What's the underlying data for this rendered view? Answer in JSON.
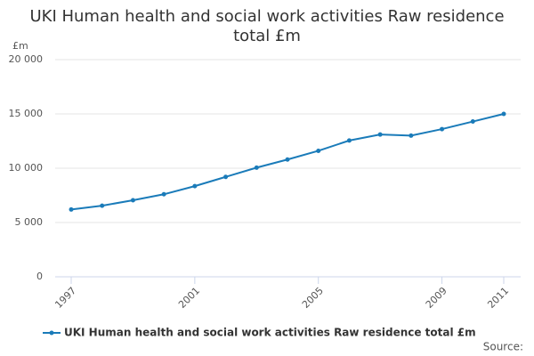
{
  "chart_data": {
    "type": "line",
    "title": "UKI Human health and social work activities Raw residence total £m",
    "y_label": "£m",
    "source": "Source:",
    "x": [
      1997,
      1998,
      1999,
      2000,
      2001,
      2002,
      2003,
      2004,
      2005,
      2006,
      2007,
      2008,
      2009,
      2010,
      2011
    ],
    "xlim": [
      1997,
      2011
    ],
    "xticks": [
      1997,
      2001,
      2005,
      2009,
      2011
    ],
    "ylim": [
      0,
      20000
    ],
    "yticks": [
      0,
      {
        "value": 5000,
        "label": "5 000"
      },
      {
        "value": 10000,
        "label": "10 000"
      },
      {
        "value": 15000,
        "label": "15 000"
      },
      {
        "value": 20000,
        "label": "20 000"
      }
    ],
    "grid": true,
    "series": [
      {
        "name": "UKI Human health and social work activities Raw residence total £m",
        "color": "#1a7bb9",
        "values": [
          6200,
          6550,
          7050,
          7600,
          8350,
          9200,
          10050,
          10800,
          11600,
          12550,
          13100,
          13000,
          13600,
          14300,
          15000
        ]
      }
    ]
  }
}
